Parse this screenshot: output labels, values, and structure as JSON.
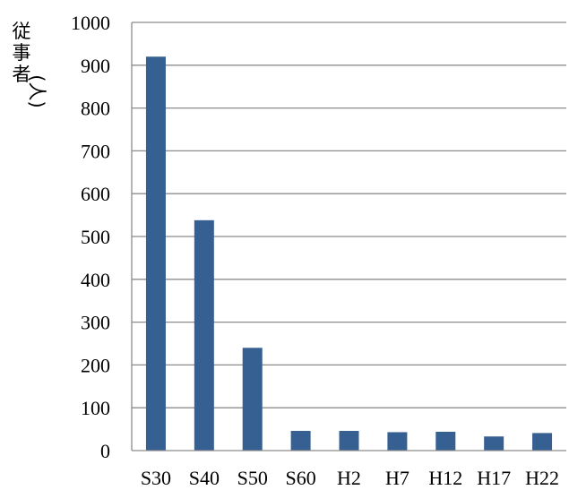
{
  "chart_data": {
    "type": "bar",
    "title": "",
    "xlabel": "",
    "ylabel": "従事者(人)",
    "categories": [
      "S30",
      "S40",
      "S50",
      "S60",
      "H2",
      "H7",
      "H12",
      "H17",
      "H22"
    ],
    "values": [
      920,
      538,
      240,
      46,
      46,
      43,
      44,
      33,
      41
    ],
    "ylim": [
      0,
      1000
    ],
    "yticks": [
      0,
      100,
      200,
      300,
      400,
      500,
      600,
      700,
      800,
      900,
      1000
    ],
    "grid": true,
    "legend": "none",
    "bar_color": "#376092"
  }
}
